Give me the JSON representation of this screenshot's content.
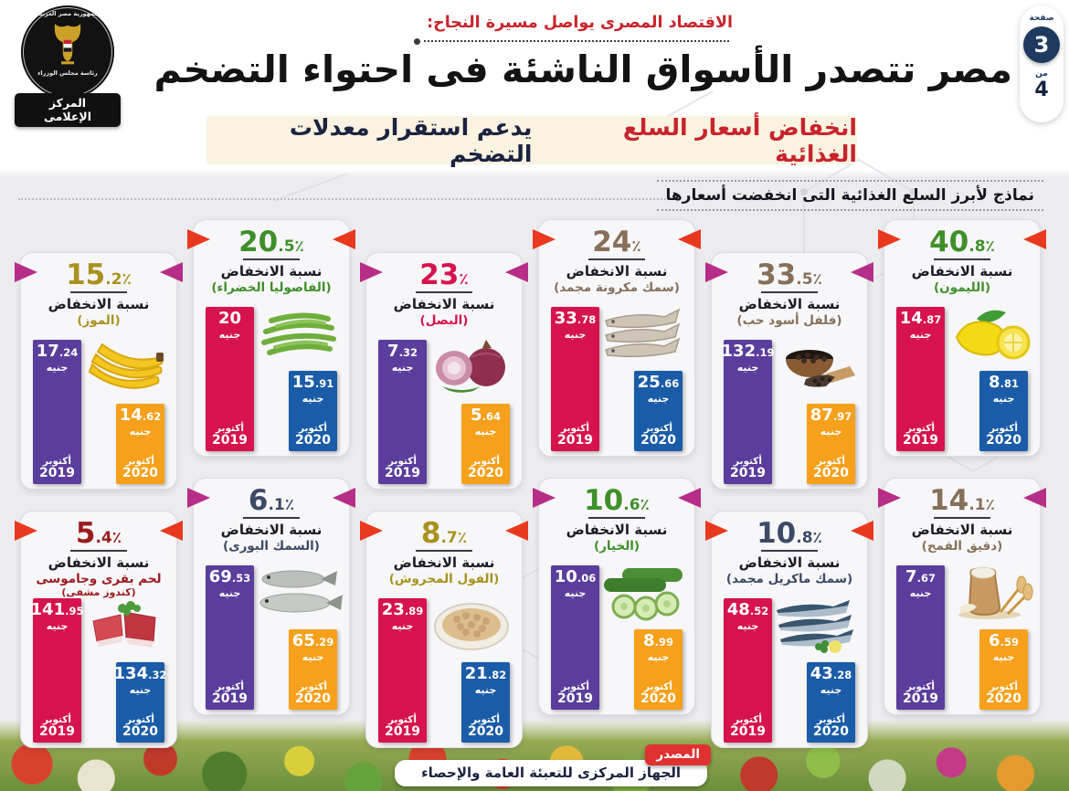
{
  "header": {
    "tagline": "الاقتصاد المصرى يواصل مسيرة النجاح:",
    "title": "مصر تتصدر الأسواق الناشئة فى احتواء التضخم",
    "subtitle_highlight": "انخفاض أسعار السلع الغذائية",
    "subtitle_rest": "يدعم استقرار معدلات التضخم",
    "section_note": "نماذج لأبرز السلع الغذائية التى انخفضت أسعارها",
    "page": {
      "label": "صفحة",
      "current": "3",
      "of_label": "من",
      "total": "4"
    }
  },
  "logo": {
    "country": "جمهورية مصر العربية",
    "org": "رئاسة مجلس الوزراء",
    "center": "المركز الإعلامى"
  },
  "labels": {
    "decrease": "نسبة الانخفاض",
    "currency": "جنيه",
    "month": "أكتوبر",
    "year_2019": "2019",
    "year_2020": "2020",
    "percent_sign": "٪"
  },
  "palette": {
    "schemes": {
      "red": {
        "arrow": "#e8391f",
        "bar2019": "#d6134c",
        "bar2020": "#1a5ca8"
      },
      "magenta": {
        "arrow": "#b62e87",
        "bar2019": "#5a3d9c",
        "bar2020": "#f6a01b"
      }
    },
    "text_colors": {
      "green": "#3f8f2a",
      "taupe": "#86705a",
      "crimson": "#d6134c",
      "gold": "#a9911f",
      "navy": "#3c4a66",
      "darkred": "#9c1b1f"
    }
  },
  "cards": [
    {
      "name": "(الليمون)",
      "subname": "",
      "percent": "40.8",
      "v2019": "14.87",
      "v2020": "8.81",
      "scheme": "red",
      "color": "green",
      "icon": "lemon-icon"
    },
    {
      "name": "(فلفل أسود حب)",
      "subname": "",
      "percent": "33.5",
      "v2019": "132.19",
      "v2020": "87.97",
      "scheme": "magenta",
      "color": "taupe",
      "icon": "black-pepper-icon"
    },
    {
      "name": "(سمك مكرونة مجمد)",
      "subname": "",
      "percent": "24",
      "v2019": "33.78",
      "v2020": "25.66",
      "scheme": "red",
      "color": "taupe",
      "icon": "frozen-fish-icon"
    },
    {
      "name": "(البصل)",
      "subname": "",
      "percent": "23",
      "v2019": "7.32",
      "v2020": "5.64",
      "scheme": "magenta",
      "color": "crimson",
      "icon": "onion-icon"
    },
    {
      "name": "(الفاصوليا الخضراء)",
      "subname": "",
      "percent": "20.5",
      "v2019": "20",
      "v2020": "15.91",
      "scheme": "red",
      "color": "green",
      "icon": "green-beans-icon"
    },
    {
      "name": "(الموز)",
      "subname": "",
      "percent": "15.2",
      "v2019": "17.24",
      "v2020": "14.62",
      "scheme": "magenta",
      "color": "gold",
      "icon": "banana-icon"
    },
    {
      "name": "(دقيق القمح)",
      "subname": "",
      "percent": "14.1",
      "v2019": "7.67",
      "v2020": "6.59",
      "scheme": "magenta",
      "color": "taupe",
      "icon": "wheat-flour-icon"
    },
    {
      "name": "(سمك ماكريل مجمد)",
      "subname": "",
      "percent": "10.8",
      "v2019": "48.52",
      "v2020": "43.28",
      "scheme": "red",
      "color": "navy",
      "icon": "mackerel-icon"
    },
    {
      "name": "(الخيار)",
      "subname": "",
      "percent": "10.6",
      "v2019": "10.06",
      "v2020": "8.99",
      "scheme": "magenta",
      "color": "green",
      "icon": "cucumber-icon"
    },
    {
      "name": "(الفول المجروش)",
      "subname": "",
      "percent": "8.7",
      "v2019": "23.89",
      "v2020": "21.82",
      "scheme": "red",
      "color": "gold",
      "icon": "crushed-beans-icon"
    },
    {
      "name": "(السمك البورى)",
      "subname": "",
      "percent": "6.1",
      "v2019": "69.53",
      "v2020": "65.29",
      "scheme": "magenta",
      "color": "navy",
      "icon": "mullet-fish-icon"
    },
    {
      "name": "لحم بقرى وجاموسى",
      "subname": "(كندوز مشفى)",
      "percent": "5.4",
      "v2019": "141.95",
      "v2020": "134.32",
      "scheme": "red",
      "color": "darkred",
      "icon": "beef-icon"
    }
  ],
  "footer": {
    "source_label": "المصدر",
    "source_text": "الجهاز المركزى للتعبئة العامة والإحصاء"
  },
  "chart_data": {
    "type": "bar",
    "title": "نماذج لأبرز السلع الغذائية التى انخفضت أسعارها",
    "unit": "جنيه",
    "categories": [
      "أكتوبر 2019",
      "أكتوبر 2020"
    ],
    "items": [
      {
        "name": "الليمون",
        "decrease_pct": 40.8,
        "values": [
          14.87,
          8.81
        ]
      },
      {
        "name": "فلفل أسود حب",
        "decrease_pct": 33.5,
        "values": [
          132.19,
          87.97
        ]
      },
      {
        "name": "سمك مكرونة مجمد",
        "decrease_pct": 24,
        "values": [
          33.78,
          25.66
        ]
      },
      {
        "name": "البصل",
        "decrease_pct": 23,
        "values": [
          7.32,
          5.64
        ]
      },
      {
        "name": "الفاصوليا الخضراء",
        "decrease_pct": 20.5,
        "values": [
          20,
          15.91
        ]
      },
      {
        "name": "الموز",
        "decrease_pct": 15.2,
        "values": [
          17.24,
          14.62
        ]
      },
      {
        "name": "دقيق القمح",
        "decrease_pct": 14.1,
        "values": [
          7.67,
          6.59
        ]
      },
      {
        "name": "سمك ماكريل مجمد",
        "decrease_pct": 10.8,
        "values": [
          48.52,
          43.28
        ]
      },
      {
        "name": "الخيار",
        "decrease_pct": 10.6,
        "values": [
          10.06,
          8.99
        ]
      },
      {
        "name": "الفول المجروش",
        "decrease_pct": 8.7,
        "values": [
          23.89,
          21.82
        ]
      },
      {
        "name": "السمك البورى",
        "decrease_pct": 6.1,
        "values": [
          69.53,
          65.29
        ]
      },
      {
        "name": "لحم بقرى وجاموسى (كندوز مشفى)",
        "decrease_pct": 5.4,
        "values": [
          141.95,
          134.32
        ]
      }
    ]
  }
}
